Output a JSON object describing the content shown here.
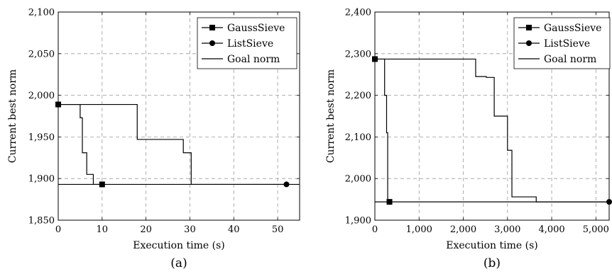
{
  "chart_data": [
    {
      "type": "line",
      "caption": "(a)",
      "xlabel": "Execution time (s)",
      "ylabel": "Current best norm",
      "xlim": [
        0,
        55
      ],
      "ylim": [
        1850,
        2100
      ],
      "xticks": [
        0,
        10,
        20,
        30,
        40,
        50
      ],
      "yticks": [
        1850,
        1900,
        1950,
        2000,
        2050,
        2100
      ],
      "xtick_labels": [
        "0",
        "10",
        "20",
        "30",
        "40",
        "50"
      ],
      "ytick_labels": [
        "1,850",
        "1,900",
        "1,950",
        "2,000",
        "2,050",
        "2,100"
      ],
      "grid": true,
      "legend_position": "top-right",
      "series": [
        {
          "name": "GaussSieve",
          "marker": "square",
          "step": true,
          "points": [
            [
              0,
              1989
            ],
            [
              5,
              1989
            ],
            [
              5,
              1973
            ],
            [
              5.5,
              1973
            ],
            [
              5.5,
              1931
            ],
            [
              6.5,
              1931
            ],
            [
              6.5,
              1905
            ],
            [
              8,
              1905
            ],
            [
              8,
              1893
            ],
            [
              10,
              1893
            ]
          ],
          "marker_points": [
            [
              0,
              1989
            ],
            [
              10,
              1893
            ]
          ]
        },
        {
          "name": "ListSieve",
          "marker": "circle",
          "step": true,
          "points": [
            [
              0,
              1989
            ],
            [
              18,
              1989
            ],
            [
              18,
              1947
            ],
            [
              28.5,
              1947
            ],
            [
              28.5,
              1931
            ],
            [
              30.3,
              1931
            ],
            [
              30.3,
              1893
            ],
            [
              52,
              1893
            ]
          ],
          "marker_points": [
            [
              52,
              1893
            ]
          ]
        },
        {
          "name": "Goal norm",
          "marker": "none",
          "step": false,
          "points": [
            [
              0,
              1893
            ],
            [
              55,
              1893
            ]
          ],
          "marker_points": []
        }
      ]
    },
    {
      "type": "line",
      "caption": "(b)",
      "xlabel": "Execution time (s)",
      "ylabel": "Current best norm",
      "xlim": [
        0,
        5300
      ],
      "ylim": [
        1900,
        2400
      ],
      "xticks": [
        0,
        1000,
        2000,
        3000,
        4000,
        5000
      ],
      "yticks": [
        1900,
        2000,
        2100,
        2200,
        2300,
        2400
      ],
      "xtick_labels": [
        "0",
        "1,000",
        "2,000",
        "3,000",
        "4,000",
        "5,000"
      ],
      "ytick_labels": [
        "1,900",
        "2,000",
        "2,100",
        "2,200",
        "2,300",
        "2,400"
      ],
      "grid": true,
      "legend_position": "top-right",
      "series": [
        {
          "name": "GaussSieve",
          "marker": "square",
          "step": true,
          "points": [
            [
              0,
              2287
            ],
            [
              220,
              2287
            ],
            [
              220,
              2200
            ],
            [
              265,
              2200
            ],
            [
              265,
              2110
            ],
            [
              290,
              2110
            ],
            [
              290,
              1944
            ],
            [
              330,
              1944
            ]
          ],
          "marker_points": [
            [
              0,
              2287
            ],
            [
              330,
              1944
            ]
          ]
        },
        {
          "name": "ListSieve",
          "marker": "circle",
          "step": true,
          "points": [
            [
              0,
              2287
            ],
            [
              2280,
              2287
            ],
            [
              2280,
              2245
            ],
            [
              2520,
              2245
            ],
            [
              2520,
              2243
            ],
            [
              2700,
              2243
            ],
            [
              2700,
              2150
            ],
            [
              3000,
              2150
            ],
            [
              3000,
              2068
            ],
            [
              3100,
              2068
            ],
            [
              3100,
              1956
            ],
            [
              3650,
              1956
            ],
            [
              3650,
              1944
            ],
            [
              5300,
              1944
            ]
          ],
          "marker_points": [
            [
              5300,
              1944
            ]
          ]
        },
        {
          "name": "Goal norm",
          "marker": "none",
          "step": false,
          "points": [
            [
              0,
              1944
            ],
            [
              5300,
              1944
            ]
          ],
          "marker_points": []
        }
      ]
    }
  ]
}
